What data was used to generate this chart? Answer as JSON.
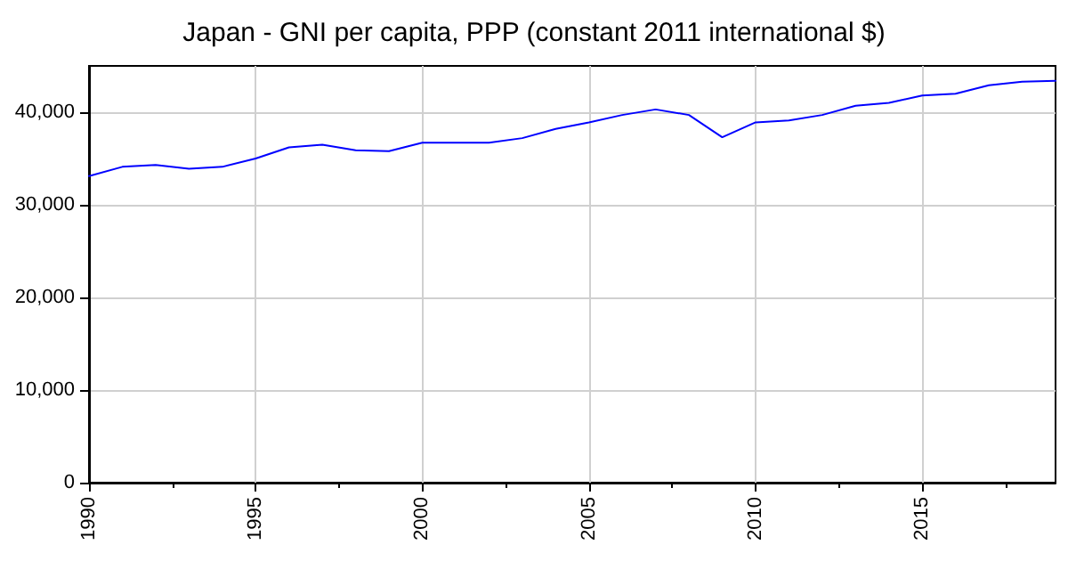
{
  "chart_data": {
    "type": "line",
    "title": "Japan - GNI per capita, PPP (constant 2011 international $)",
    "x": [
      1990,
      1991,
      1992,
      1993,
      1994,
      1995,
      1996,
      1997,
      1998,
      1999,
      2000,
      2001,
      2002,
      2003,
      2004,
      2005,
      2006,
      2007,
      2008,
      2009,
      2010,
      2011,
      2012,
      2013,
      2014,
      2015,
      2016,
      2017,
      2018,
      2019
    ],
    "series": [
      {
        "color": "#0000ff",
        "values": [
          33100,
          34100,
          34300,
          33900,
          34100,
          35000,
          36200,
          36500,
          35900,
          35800,
          36700,
          36700,
          36700,
          37200,
          38200,
          38900,
          39700,
          40300,
          39700,
          37300,
          38900,
          39100,
          39700,
          40700,
          41000,
          41800,
          42000,
          42900,
          43300,
          43400
        ]
      }
    ],
    "xlim": [
      1990,
      2019
    ],
    "xticks": [
      1990,
      1995,
      2000,
      2005,
      2010,
      2015
    ],
    "ylim": [
      0,
      45000
    ],
    "yticks": [
      {
        "value": 0,
        "label": "0"
      },
      {
        "value": 10000,
        "label": "10,000"
      },
      {
        "value": 20000,
        "label": "20,000"
      },
      {
        "value": 30000,
        "label": "30,000"
      },
      {
        "value": 40000,
        "label": "40,000"
      }
    ],
    "grid": true,
    "marker": "none",
    "line_style": "solid"
  }
}
